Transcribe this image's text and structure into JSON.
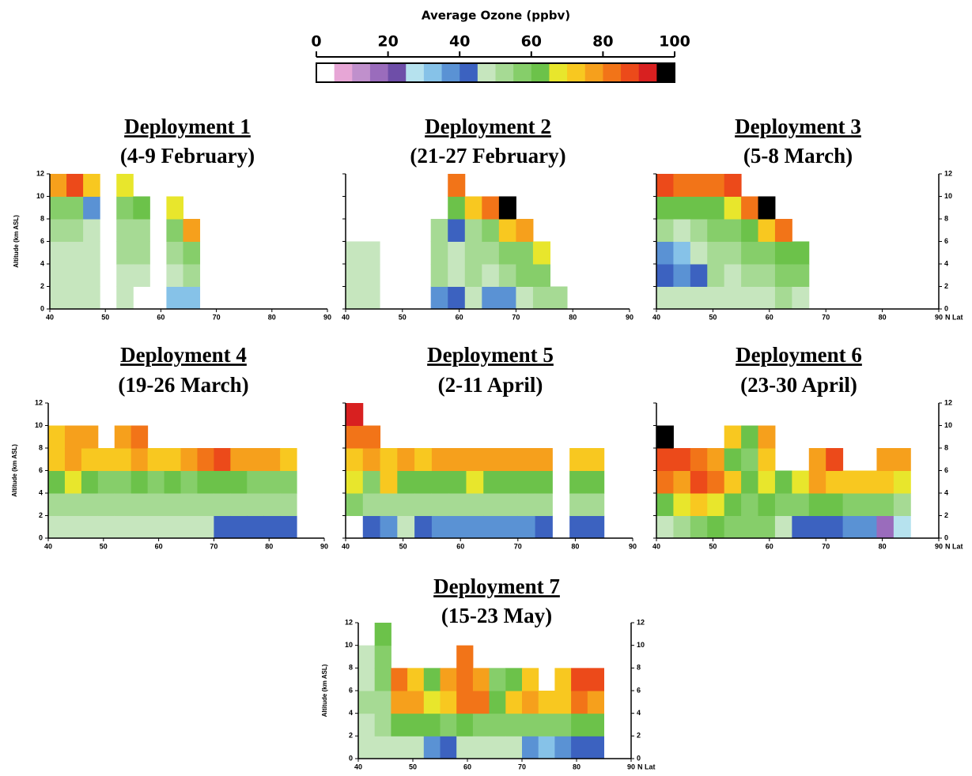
{
  "chart_data": [
    {
      "type": "colorbar",
      "title": "Average Ozone (ppbv)",
      "range": [
        0,
        100
      ],
      "ticks": [
        0,
        20,
        40,
        60,
        80,
        100
      ],
      "colors": [
        "#ffffff",
        "#e7a6d6",
        "#c090cc",
        "#9a6cbc",
        "#6e4ea8",
        "#b6e2ee",
        "#86c2e8",
        "#5a92d4",
        "#3c62c0",
        "#c6e6be",
        "#a6da94",
        "#86ce6a",
        "#6cc24a",
        "#e8e62c",
        "#f8c820",
        "#f6a01c",
        "#f27418",
        "#ec4a1a",
        "#d82020",
        "#000000"
      ]
    },
    {
      "type": "heatmap",
      "title": "Deployment 1",
      "subtitle": "(4-9 February)",
      "ylabel": "Altitude (km ASL)",
      "xlim": [
        40,
        90
      ],
      "xticks": [
        40,
        50,
        60,
        70,
        80,
        90
      ],
      "ylim": [
        0,
        12
      ],
      "yticks": [
        0,
        2,
        4,
        6,
        8,
        10,
        12
      ],
      "xbins": [
        40,
        43,
        46,
        49,
        52,
        55,
        58,
        61,
        64,
        67,
        70,
        73,
        76,
        79,
        82,
        85
      ],
      "ybins": [
        0,
        2,
        4,
        6,
        8,
        10,
        12
      ],
      "values": [
        [
          45,
          45,
          48,
          50,
          58,
          75
        ],
        [
          45,
          45,
          48,
          50,
          55,
          85
        ],
        [
          45,
          46,
          48,
          45,
          38,
          70
        ],
        [
          null,
          null,
          null,
          null,
          null,
          null
        ],
        [
          48,
          48,
          50,
          52,
          55,
          65
        ],
        [
          null,
          48,
          50,
          52,
          60,
          null
        ],
        [
          null,
          null,
          null,
          null,
          null,
          null
        ],
        [
          30,
          48,
          52,
          55,
          65,
          null
        ],
        [
          30,
          50,
          58,
          75,
          null,
          null
        ],
        [
          null,
          null,
          null,
          null,
          null,
          null
        ],
        [
          null,
          null,
          null,
          null,
          null,
          null
        ],
        [
          null,
          null,
          null,
          null,
          null,
          null
        ],
        [
          null,
          null,
          null,
          null,
          null,
          null
        ],
        [
          null,
          null,
          null,
          null,
          null,
          null
        ],
        [
          null,
          null,
          null,
          null,
          null,
          null
        ]
      ]
    },
    {
      "type": "heatmap",
      "title": "Deployment 2",
      "subtitle": "(21-27 February)",
      "xlim": [
        40,
        90
      ],
      "xticks": [
        40,
        50,
        60,
        70,
        80,
        90
      ],
      "ylim": [
        0,
        12
      ],
      "yticks": [
        0,
        2,
        4,
        6,
        8,
        10,
        12
      ],
      "xbins": [
        40,
        43,
        46,
        49,
        52,
        55,
        58,
        61,
        64,
        67,
        70,
        73,
        76,
        79,
        82,
        85
      ],
      "ybins": [
        0,
        2,
        4,
        6,
        8,
        10,
        12
      ],
      "values": [
        [
          45,
          48,
          48,
          null,
          null,
          null
        ],
        [
          45,
          48,
          48,
          null,
          null,
          null
        ],
        [
          null,
          null,
          null,
          null,
          null,
          null
        ],
        [
          null,
          null,
          null,
          null,
          null,
          null
        ],
        [
          null,
          null,
          null,
          null,
          null,
          null
        ],
        [
          35,
          50,
          50,
          50,
          null,
          null
        ],
        [
          40,
          48,
          48,
          40,
          60,
          80
        ],
        [
          45,
          50,
          50,
          52,
          70,
          null
        ],
        [
          35,
          48,
          52,
          55,
          80,
          null
        ],
        [
          38,
          52,
          55,
          70,
          95,
          null
        ],
        [
          45,
          55,
          55,
          75,
          null,
          null
        ],
        [
          50,
          55,
          65,
          null,
          null,
          null
        ],
        [
          50,
          null,
          null,
          null,
          null,
          null
        ],
        [
          null,
          null,
          null,
          null,
          null,
          null
        ],
        [
          null,
          null,
          null,
          null,
          null,
          null
        ]
      ]
    },
    {
      "type": "heatmap",
      "title": "Deployment 3",
      "subtitle": "(5-8 March)",
      "xlabel": "N Lat",
      "xlim": [
        40,
        90
      ],
      "xticks": [
        40,
        50,
        60,
        70,
        80,
        90
      ],
      "ylim": [
        0,
        12
      ],
      "yticks": [
        0,
        2,
        4,
        6,
        8,
        10,
        12
      ],
      "xbins": [
        40,
        43,
        46,
        49,
        52,
        55,
        58,
        61,
        64,
        67,
        70,
        73,
        76,
        79,
        82,
        85
      ],
      "ybins": [
        0,
        2,
        4,
        6,
        8,
        10,
        12
      ],
      "values": [
        [
          48,
          40,
          38,
          50,
          60,
          85
        ],
        [
          48,
          35,
          30,
          48,
          60,
          80
        ],
        [
          45,
          40,
          48,
          50,
          60,
          80
        ],
        [
          45,
          50,
          52,
          55,
          62,
          80
        ],
        [
          45,
          48,
          50,
          55,
          65,
          85
        ],
        [
          48,
          52,
          55,
          62,
          80,
          null
        ],
        [
          48,
          50,
          55,
          70,
          98,
          null
        ],
        [
          50,
          55,
          60,
          80,
          null,
          null
        ],
        [
          48,
          55,
          62,
          null,
          null,
          null
        ],
        [
          null,
          null,
          null,
          null,
          null,
          null
        ],
        [
          null,
          null,
          null,
          null,
          null,
          null
        ],
        [
          null,
          null,
          null,
          null,
          null,
          null
        ],
        [
          null,
          null,
          null,
          null,
          null,
          null
        ],
        [
          null,
          null,
          null,
          null,
          null,
          null
        ],
        [
          null,
          null,
          null,
          null,
          null,
          null
        ]
      ]
    },
    {
      "type": "heatmap",
      "title": "Deployment 4",
      "subtitle": "(19-26 March)",
      "ylabel": "Altitude (km ASL)",
      "xlim": [
        40,
        90
      ],
      "xticks": [
        40,
        50,
        60,
        70,
        80,
        90
      ],
      "ylim": [
        0,
        12
      ],
      "yticks": [
        0,
        2,
        4,
        6,
        8,
        10,
        12
      ],
      "xbins": [
        40,
        43,
        46,
        49,
        52,
        55,
        58,
        61,
        64,
        67,
        70,
        73,
        76,
        79,
        82,
        85
      ],
      "ybins": [
        0,
        2,
        4,
        6,
        8,
        10,
        12
      ],
      "values": [
        [
          48,
          50,
          60,
          72,
          72,
          null
        ],
        [
          48,
          50,
          65,
          75,
          75,
          null
        ],
        [
          45,
          50,
          62,
          72,
          78,
          null
        ],
        [
          45,
          50,
          55,
          70,
          null,
          null
        ],
        [
          45,
          50,
          55,
          72,
          75,
          null
        ],
        [
          45,
          52,
          60,
          75,
          80,
          null
        ],
        [
          48,
          50,
          58,
          70,
          null,
          null
        ],
        [
          45,
          50,
          60,
          70,
          null,
          null
        ],
        [
          45,
          52,
          58,
          75,
          null,
          null
        ],
        [
          45,
          52,
          60,
          80,
          null,
          null
        ],
        [
          42,
          52,
          62,
          85,
          null,
          null
        ],
        [
          42,
          50,
          60,
          75,
          null,
          null
        ],
        [
          40,
          50,
          55,
          75,
          null,
          null
        ],
        [
          40,
          50,
          58,
          75,
          null,
          null
        ],
        [
          40,
          50,
          58,
          70,
          null,
          null
        ]
      ]
    },
    {
      "type": "heatmap",
      "title": "Deployment 5",
      "subtitle": "(2-11 April)",
      "xlim": [
        40,
        90
      ],
      "xticks": [
        40,
        50,
        60,
        70,
        80,
        90
      ],
      "ylim": [
        0,
        12
      ],
      "yticks": [
        0,
        2,
        4,
        6,
        8,
        10,
        12
      ],
      "xbins": [
        40,
        43,
        46,
        49,
        52,
        55,
        58,
        61,
        64,
        67,
        70,
        73,
        76,
        79,
        82,
        85
      ],
      "ybins": [
        0,
        2,
        4,
        6,
        8,
        10,
        12
      ],
      "values": [
        [
          null,
          55,
          65,
          72,
          80,
          90
        ],
        [
          40,
          50,
          58,
          75,
          80,
          null
        ],
        [
          38,
          50,
          72,
          70,
          null,
          null
        ],
        [
          45,
          52,
          60,
          75,
          null,
          null
        ],
        [
          40,
          52,
          60,
          72,
          null,
          null
        ],
        [
          38,
          50,
          62,
          75,
          null,
          null
        ],
        [
          38,
          50,
          62,
          75,
          null,
          null
        ],
        [
          38,
          50,
          65,
          78,
          null,
          null
        ],
        [
          38,
          50,
          62,
          78,
          null,
          null
        ],
        [
          38,
          50,
          62,
          75,
          null,
          null
        ],
        [
          38,
          50,
          60,
          75,
          null,
          null
        ],
        [
          40,
          50,
          60,
          75,
          null,
          null
        ],
        [
          null,
          null,
          null,
          null,
          null,
          null
        ],
        [
          40,
          50,
          60,
          72,
          null,
          null
        ],
        [
          40,
          50,
          60,
          72,
          null,
          null
        ]
      ]
    },
    {
      "type": "heatmap",
      "title": "Deployment 6",
      "subtitle": "(23-30 April)",
      "xlabel": "N Lat",
      "xlim": [
        40,
        90
      ],
      "xticks": [
        40,
        50,
        60,
        70,
        80,
        90
      ],
      "ylim": [
        0,
        12
      ],
      "yticks": [
        0,
        2,
        4,
        6,
        8,
        10,
        12
      ],
      "xbins": [
        40,
        43,
        46,
        49,
        52,
        55,
        58,
        61,
        64,
        67,
        70,
        73,
        76,
        79,
        82,
        85
      ],
      "ybins": [
        0,
        2,
        4,
        6,
        8,
        10,
        12
      ],
      "values": [
        [
          48,
          60,
          80,
          85,
          95,
          null
        ],
        [
          50,
          65,
          75,
          88,
          null,
          null
        ],
        [
          55,
          70,
          85,
          80,
          null,
          null
        ],
        [
          60,
          65,
          80,
          78,
          null,
          null
        ],
        [
          55,
          60,
          70,
          62,
          70,
          null
        ],
        [
          55,
          55,
          60,
          55,
          60,
          null
        ],
        [
          55,
          62,
          65,
          70,
          75,
          null
        ],
        [
          45,
          55,
          62,
          null,
          null,
          null
        ],
        [
          40,
          55,
          65,
          null,
          null,
          null
        ],
        [
          40,
          60,
          75,
          75,
          null,
          null
        ],
        [
          40,
          60,
          72,
          88,
          null,
          null
        ],
        [
          38,
          55,
          70,
          null,
          null,
          null
        ],
        [
          35,
          55,
          72,
          null,
          null,
          null
        ],
        [
          15,
          55,
          70,
          78,
          null,
          null
        ],
        [
          25,
          50,
          68,
          75,
          null,
          null
        ]
      ]
    },
    {
      "type": "heatmap",
      "title": "Deployment 7",
      "subtitle": "(15-23 May)",
      "ylabel": "Altitude (km ASL)",
      "xlabel": "N Lat",
      "xlim": [
        40,
        90
      ],
      "xticks": [
        40,
        50,
        60,
        70,
        80,
        90
      ],
      "ylim": [
        0,
        12
      ],
      "yticks": [
        0,
        2,
        4,
        6,
        8,
        10,
        12
      ],
      "xbins": [
        40,
        43,
        46,
        49,
        52,
        55,
        58,
        61,
        64,
        67,
        70,
        73,
        76,
        79,
        82,
        85
      ],
      "ybins": [
        0,
        2,
        4,
        6,
        8,
        10,
        12
      ],
      "values": [
        [
          45,
          45,
          50,
          48,
          48,
          null
        ],
        [
          45,
          50,
          52,
          55,
          55,
          60
        ],
        [
          48,
          60,
          75,
          80,
          null,
          null
        ],
        [
          45,
          62,
          78,
          70,
          null,
          null
        ],
        [
          35,
          60,
          68,
          62,
          null,
          null
        ],
        [
          40,
          55,
          70,
          75,
          null,
          null
        ],
        [
          48,
          60,
          80,
          82,
          82,
          null
        ],
        [
          45,
          58,
          80,
          75,
          null,
          null
        ],
        [
          48,
          55,
          60,
          55,
          null,
          null
        ],
        [
          45,
          58,
          72,
          62,
          null,
          null
        ],
        [
          38,
          55,
          75,
          70,
          null,
          null
        ],
        [
          30,
          55,
          70,
          null,
          null,
          null
        ],
        [
          35,
          58,
          72,
          72,
          null,
          null
        ],
        [
          40,
          62,
          82,
          85,
          null,
          null
        ],
        [
          40,
          60,
          75,
          85,
          null,
          null
        ]
      ]
    }
  ]
}
